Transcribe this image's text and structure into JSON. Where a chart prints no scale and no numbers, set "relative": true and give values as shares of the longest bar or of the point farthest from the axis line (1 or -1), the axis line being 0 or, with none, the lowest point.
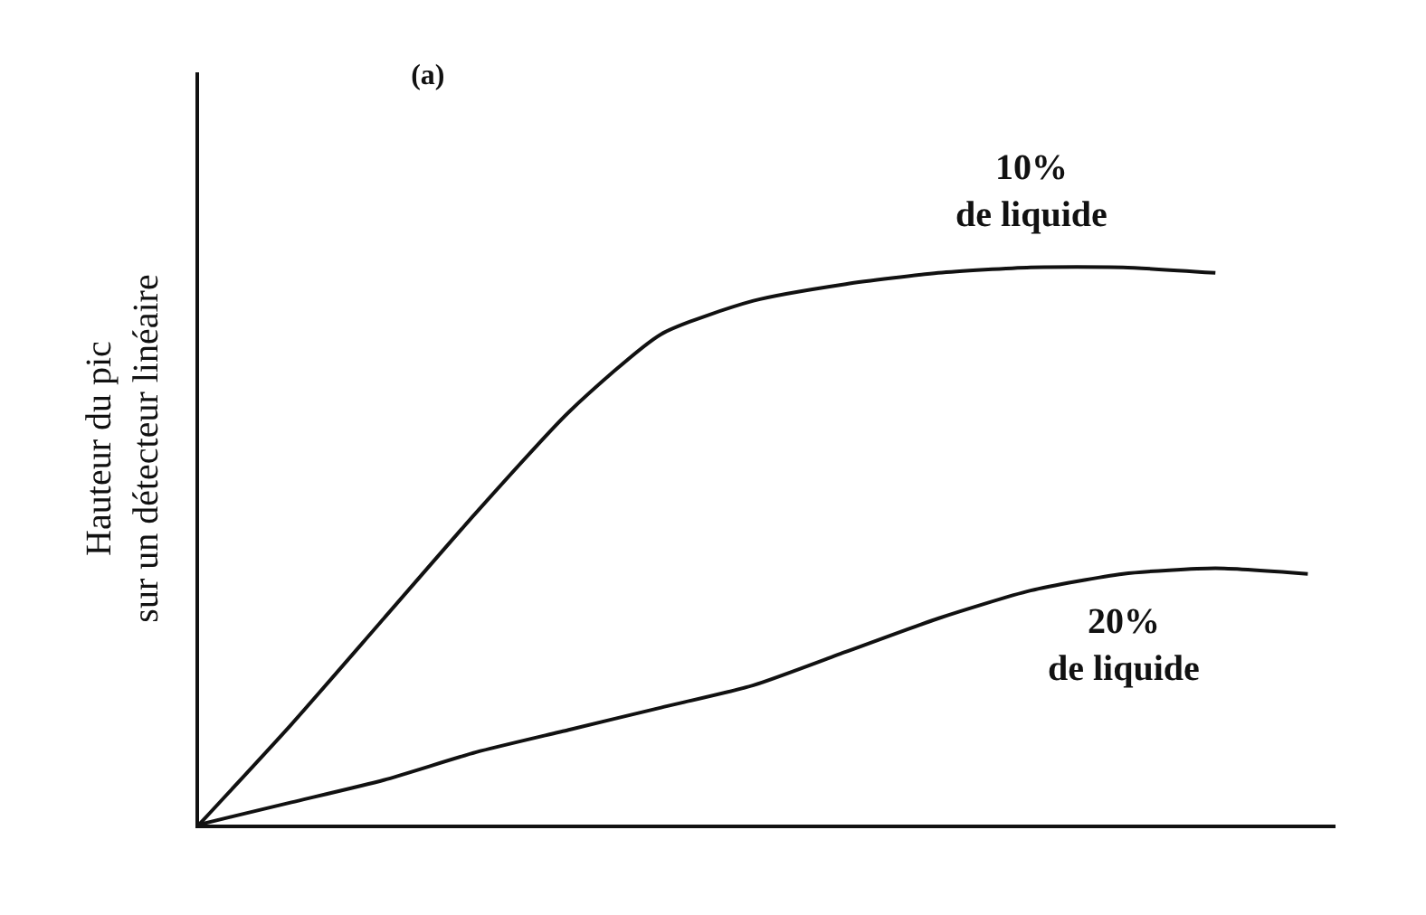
{
  "chart_data": {
    "type": "line",
    "relative": true,
    "title": "(a)",
    "ylabel": "Hauteur du pic\nsur un détecteur linéaire",
    "legend": false,
    "marker": "none",
    "line_style": "solid",
    "categories": [
      null,
      null,
      null,
      null,
      null,
      null,
      null,
      null,
      null,
      null,
      null,
      null,
      null
    ],
    "series": [
      {
        "name": "10%\nde liquide",
        "color": "#111111",
        "values": [
          0,
          0.18,
          0.37,
          0.56,
          0.74,
          0.88,
          0.94,
          0.97,
          0.99,
          1.0,
          1.0,
          0.99,
          null
        ]
      },
      {
        "name": "20%\nde liquide",
        "color": "#111111",
        "values": [
          0,
          0.04,
          0.08,
          0.13,
          0.17,
          0.21,
          0.25,
          0.31,
          0.37,
          0.42,
          0.45,
          0.46,
          0.45
        ]
      }
    ]
  }
}
